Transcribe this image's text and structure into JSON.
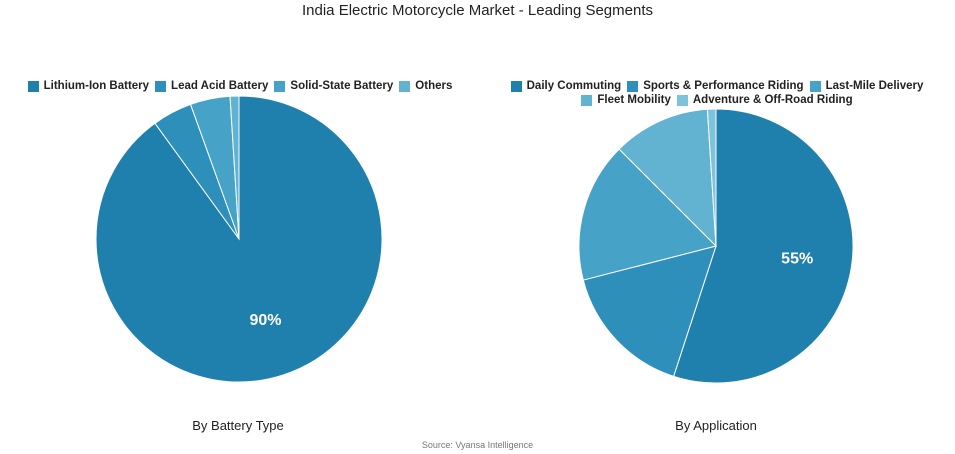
{
  "title": "India Electric Motorcycle Market - Leading Segments",
  "source": "Source: Vyansa Intelligence",
  "chart_data": [
    {
      "type": "pie",
      "caption": "By Battery Type",
      "categories": [
        "Lithium-Ion Battery",
        "Lead Acid Battery",
        "Solid-State Battery",
        "Others"
      ],
      "values": [
        90,
        4.5,
        4.5,
        1
      ],
      "colors": [
        "#1f7fad",
        "#2e8fba",
        "#47a2c8",
        "#62b2d2"
      ],
      "data_labels": [
        "90%",
        "",
        "",
        ""
      ],
      "legend_position": "top"
    },
    {
      "type": "pie",
      "caption": "By Application",
      "categories": [
        "Daily Commuting",
        "Sports & Performance Riding",
        "Last-Mile Delivery",
        "Fleet Mobility",
        "Adventure & Off-Road Riding"
      ],
      "values": [
        55,
        16,
        16.5,
        11.5,
        1
      ],
      "colors": [
        "#1f7fad",
        "#2e8fba",
        "#47a2c8",
        "#62b2d2",
        "#7fc2dc"
      ],
      "data_labels": [
        "55%",
        "",
        "",
        "",
        ""
      ],
      "legend_position": "top"
    }
  ]
}
